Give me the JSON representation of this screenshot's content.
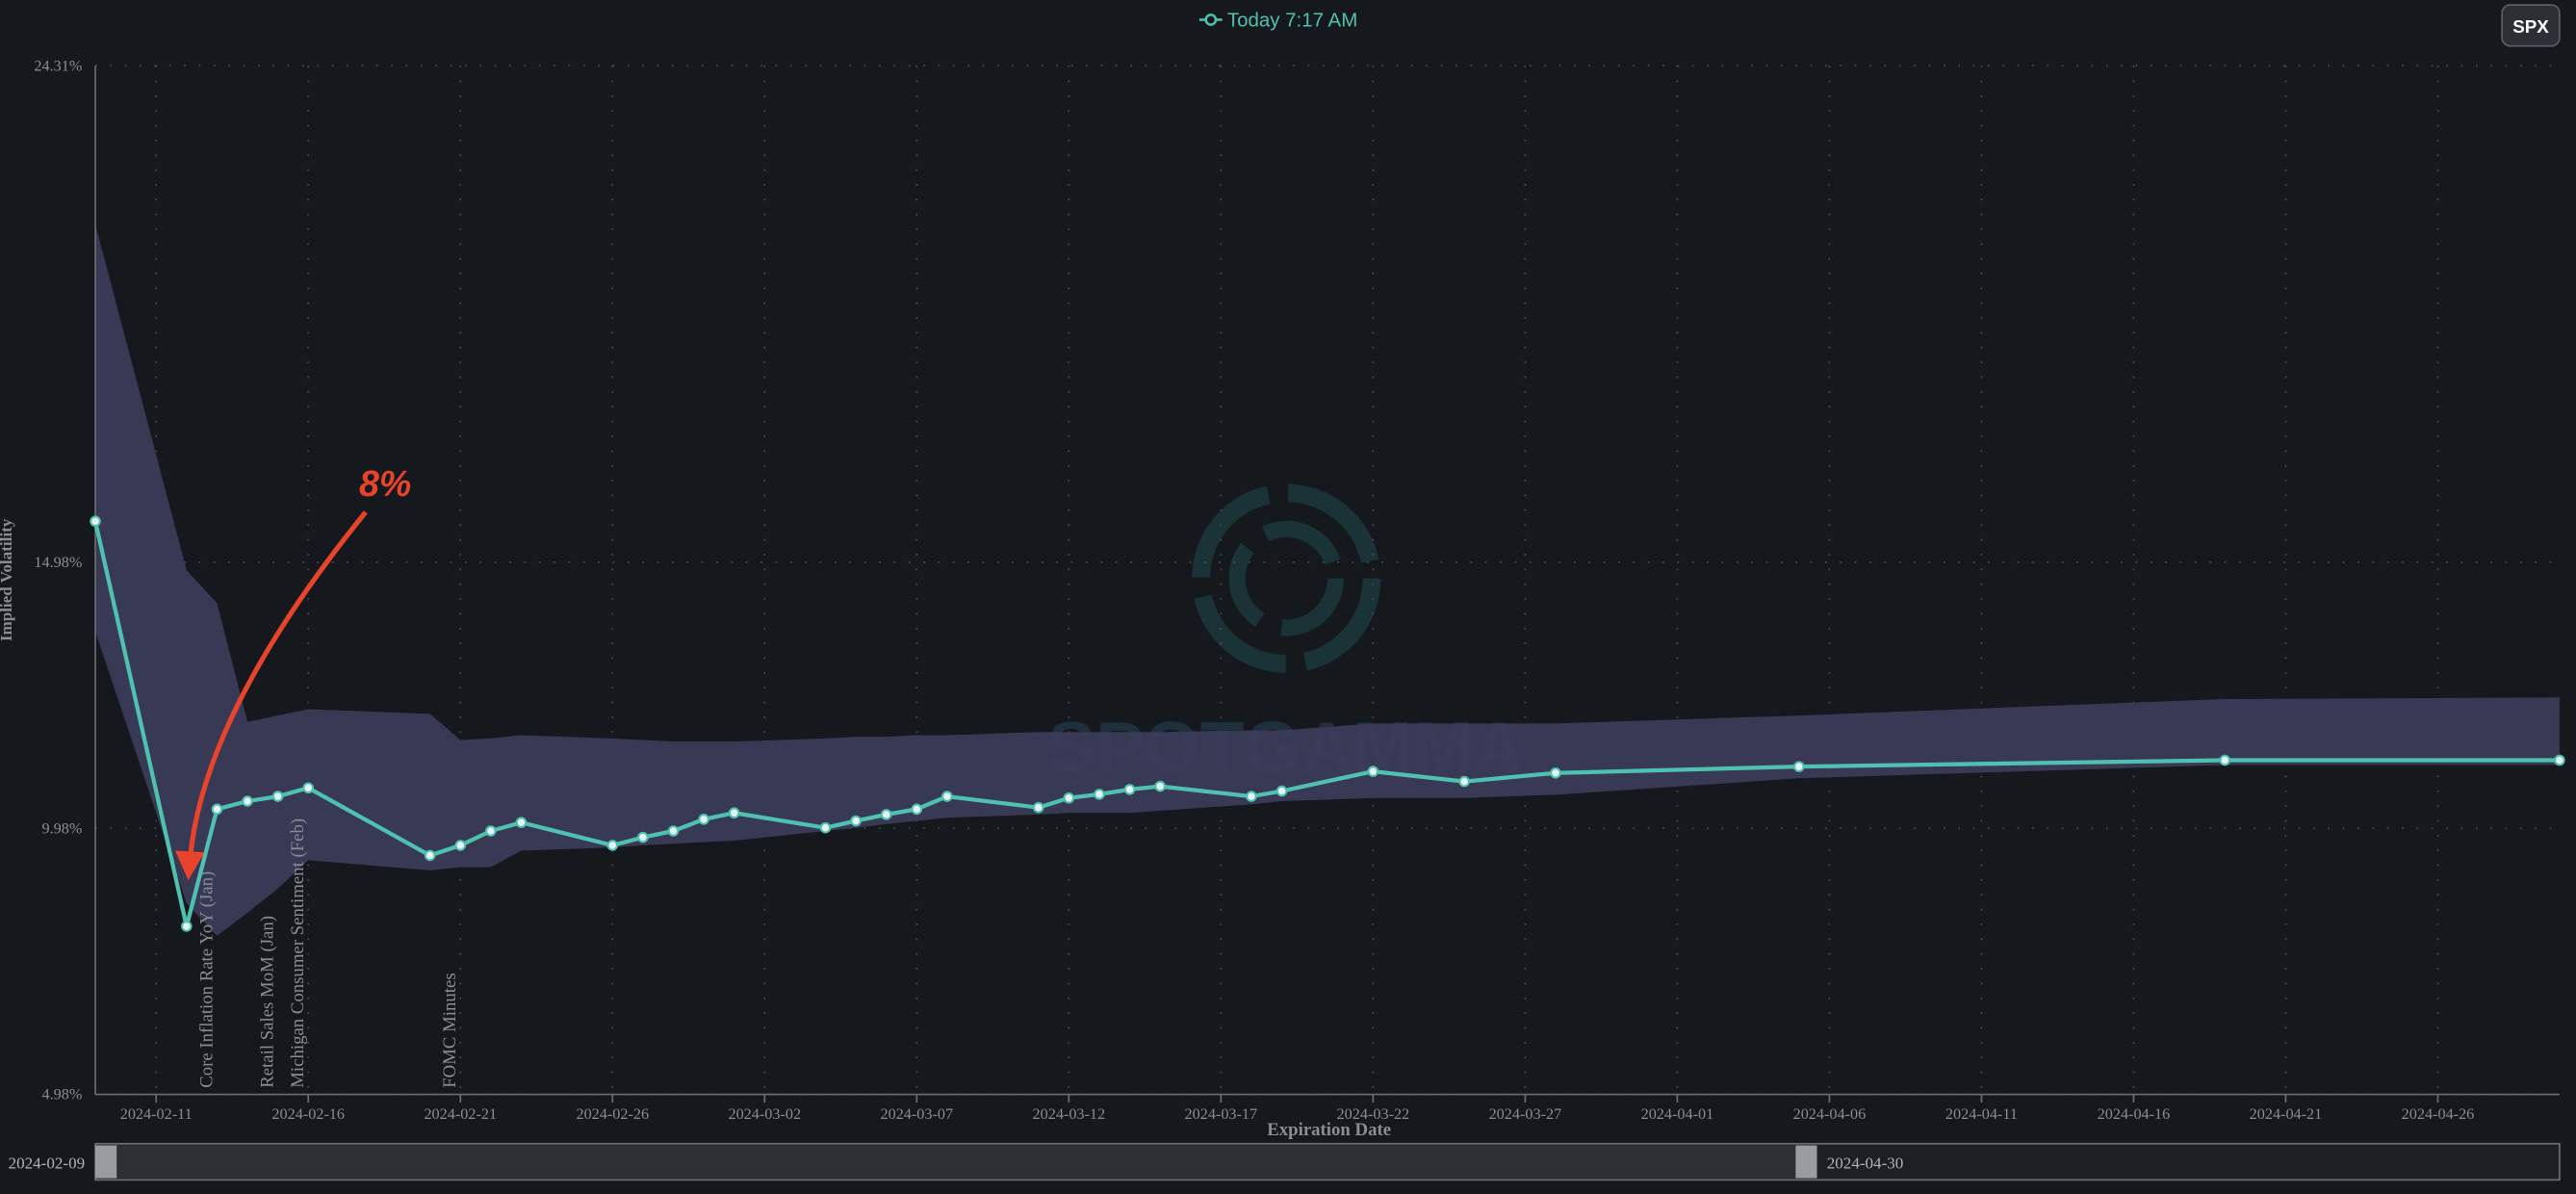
{
  "legend_button": "SPX",
  "chart_data": {
    "type": "line",
    "x": [
      "2024-02-09",
      "2024-02-12",
      "2024-02-13",
      "2024-02-14",
      "2024-02-15",
      "2024-02-16",
      "2024-02-20",
      "2024-02-21",
      "2024-02-22",
      "2024-02-23",
      "2024-02-26",
      "2024-02-27",
      "2024-02-28",
      "2024-02-29",
      "2024-03-01",
      "2024-03-04",
      "2024-03-05",
      "2024-03-06",
      "2024-03-07",
      "2024-03-08",
      "2024-03-11",
      "2024-03-12",
      "2024-03-13",
      "2024-03-14",
      "2024-03-15",
      "2024-03-18",
      "2024-03-19",
      "2024-03-22",
      "2024-03-25",
      "2024-03-28",
      "2024-04-05",
      "2024-04-19",
      "2024-04-30"
    ],
    "series": [
      {
        "name": "Today 7:17 AM",
        "color": "#4fc1b0",
        "values": [
          15.75,
          8.14,
          10.34,
          10.49,
          10.58,
          10.74,
          9.47,
          9.66,
          9.93,
          10.09,
          9.66,
          9.81,
          9.93,
          10.15,
          10.27,
          9.99,
          10.12,
          10.24,
          10.34,
          10.58,
          10.37,
          10.55,
          10.62,
          10.71,
          10.77,
          10.58,
          10.68,
          11.05,
          10.86,
          11.02,
          11.14,
          11.26,
          11.26
        ]
      }
    ],
    "band": {
      "color": "#3c3d5c",
      "upper": [
        21.33,
        14.83,
        14.21,
        11.98,
        12.1,
        12.22,
        12.13,
        11.64,
        11.67,
        11.73,
        11.67,
        11.64,
        11.61,
        11.61,
        11.61,
        11.67,
        11.7,
        11.7,
        11.73,
        11.73,
        11.79,
        11.79,
        11.79,
        11.79,
        11.79,
        11.82,
        11.82,
        11.95,
        11.95,
        11.95,
        12.1,
        12.41,
        12.44
      ],
      "lower": [
        13.68,
        8.57,
        7.96,
        8.39,
        8.85,
        9.38,
        9.19,
        9.25,
        9.25,
        9.56,
        9.62,
        9.66,
        9.69,
        9.72,
        9.75,
        9.93,
        9.99,
        10.06,
        10.12,
        10.18,
        10.24,
        10.27,
        10.27,
        10.27,
        10.31,
        10.43,
        10.49,
        10.55,
        10.55,
        10.61,
        10.92,
        11.17,
        11.17
      ]
    },
    "xlim": [
      "2024-02-09",
      "2024-04-30"
    ],
    "xticks": [
      "2024-02-11",
      "2024-02-16",
      "2024-02-21",
      "2024-02-26",
      "2024-03-02",
      "2024-03-07",
      "2024-03-12",
      "2024-03-17",
      "2024-03-22",
      "2024-03-27",
      "2024-04-01",
      "2024-04-06",
      "2024-04-11",
      "2024-04-16",
      "2024-04-21",
      "2024-04-26"
    ],
    "ylim": [
      4.98,
      24.31
    ],
    "yticks": [
      {
        "value": 4.98,
        "label": "4.98%"
      },
      {
        "value": 9.98,
        "label": "9.98%"
      },
      {
        "value": 14.98,
        "label": "14.98%"
      },
      {
        "value": 24.31,
        "label": "24.31%"
      }
    ],
    "xlabel": "Expiration Date",
    "ylabel": "Implied Volatility",
    "grid": true,
    "annotations": [
      {
        "text": "8%",
        "x": "2024-02-12",
        "color": "#e8442b"
      }
    ],
    "events": [
      {
        "date": "2024-02-13",
        "label": "Core Inflation Rate YoY (Jan)"
      },
      {
        "date": "2024-02-15",
        "label": "Retail Sales MoM (Jan)"
      },
      {
        "date": "2024-02-16",
        "label": "Michigan Consumer Sentiment (Feb)"
      },
      {
        "date": "2024-02-21",
        "label": "FOMC Minutes"
      }
    ],
    "watermark": "SPOTGAMMA"
  },
  "range_slider": {
    "start": "2024-02-09",
    "end": "2024-04-30"
  }
}
